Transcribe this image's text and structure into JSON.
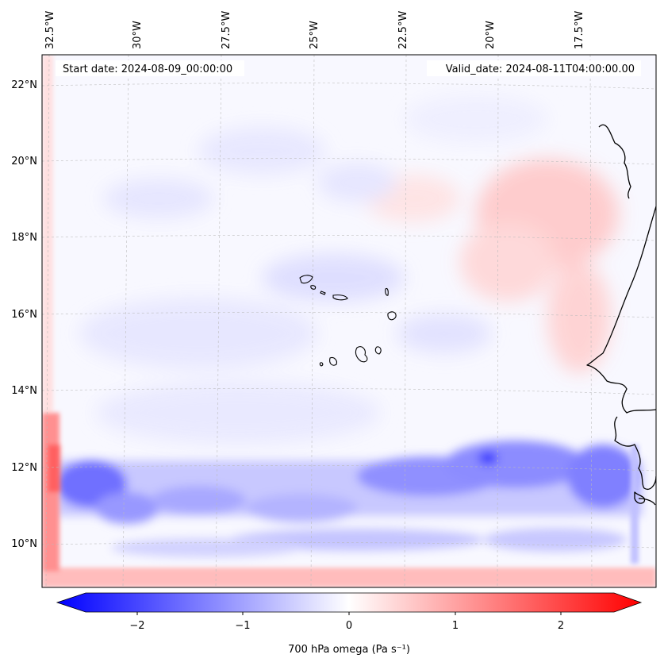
{
  "map": {
    "start_date_label": "Start date: 2024-08-09_00:00:00",
    "valid_date_label": "Valid_date: 2024-08-11T04:00:00.00",
    "longitude_ticks": [
      "32.5°W",
      "30°W",
      "27.5°W",
      "25°W",
      "22.5°W",
      "20°W",
      "17.5°W"
    ],
    "latitude_ticks": [
      "22°N",
      "20°N",
      "18°N",
      "16°N",
      "14°N",
      "12°N",
      "10°N"
    ],
    "extent": {
      "lon_min": -33.0,
      "lon_max": -15.0,
      "lat_min": 8.9,
      "lat_max": 22.8
    },
    "field_colors": {
      "negative": "#0000ff",
      "zero": "#ffffff",
      "positive": "#ff0000"
    }
  },
  "colorbar": {
    "label": "700 hPa omega (Pa s⁻¹)",
    "ticks": [
      "−2",
      "−1",
      "0",
      "1",
      "2"
    ],
    "range": [
      -2.75,
      2.75
    ],
    "cmap": "bwr"
  }
}
